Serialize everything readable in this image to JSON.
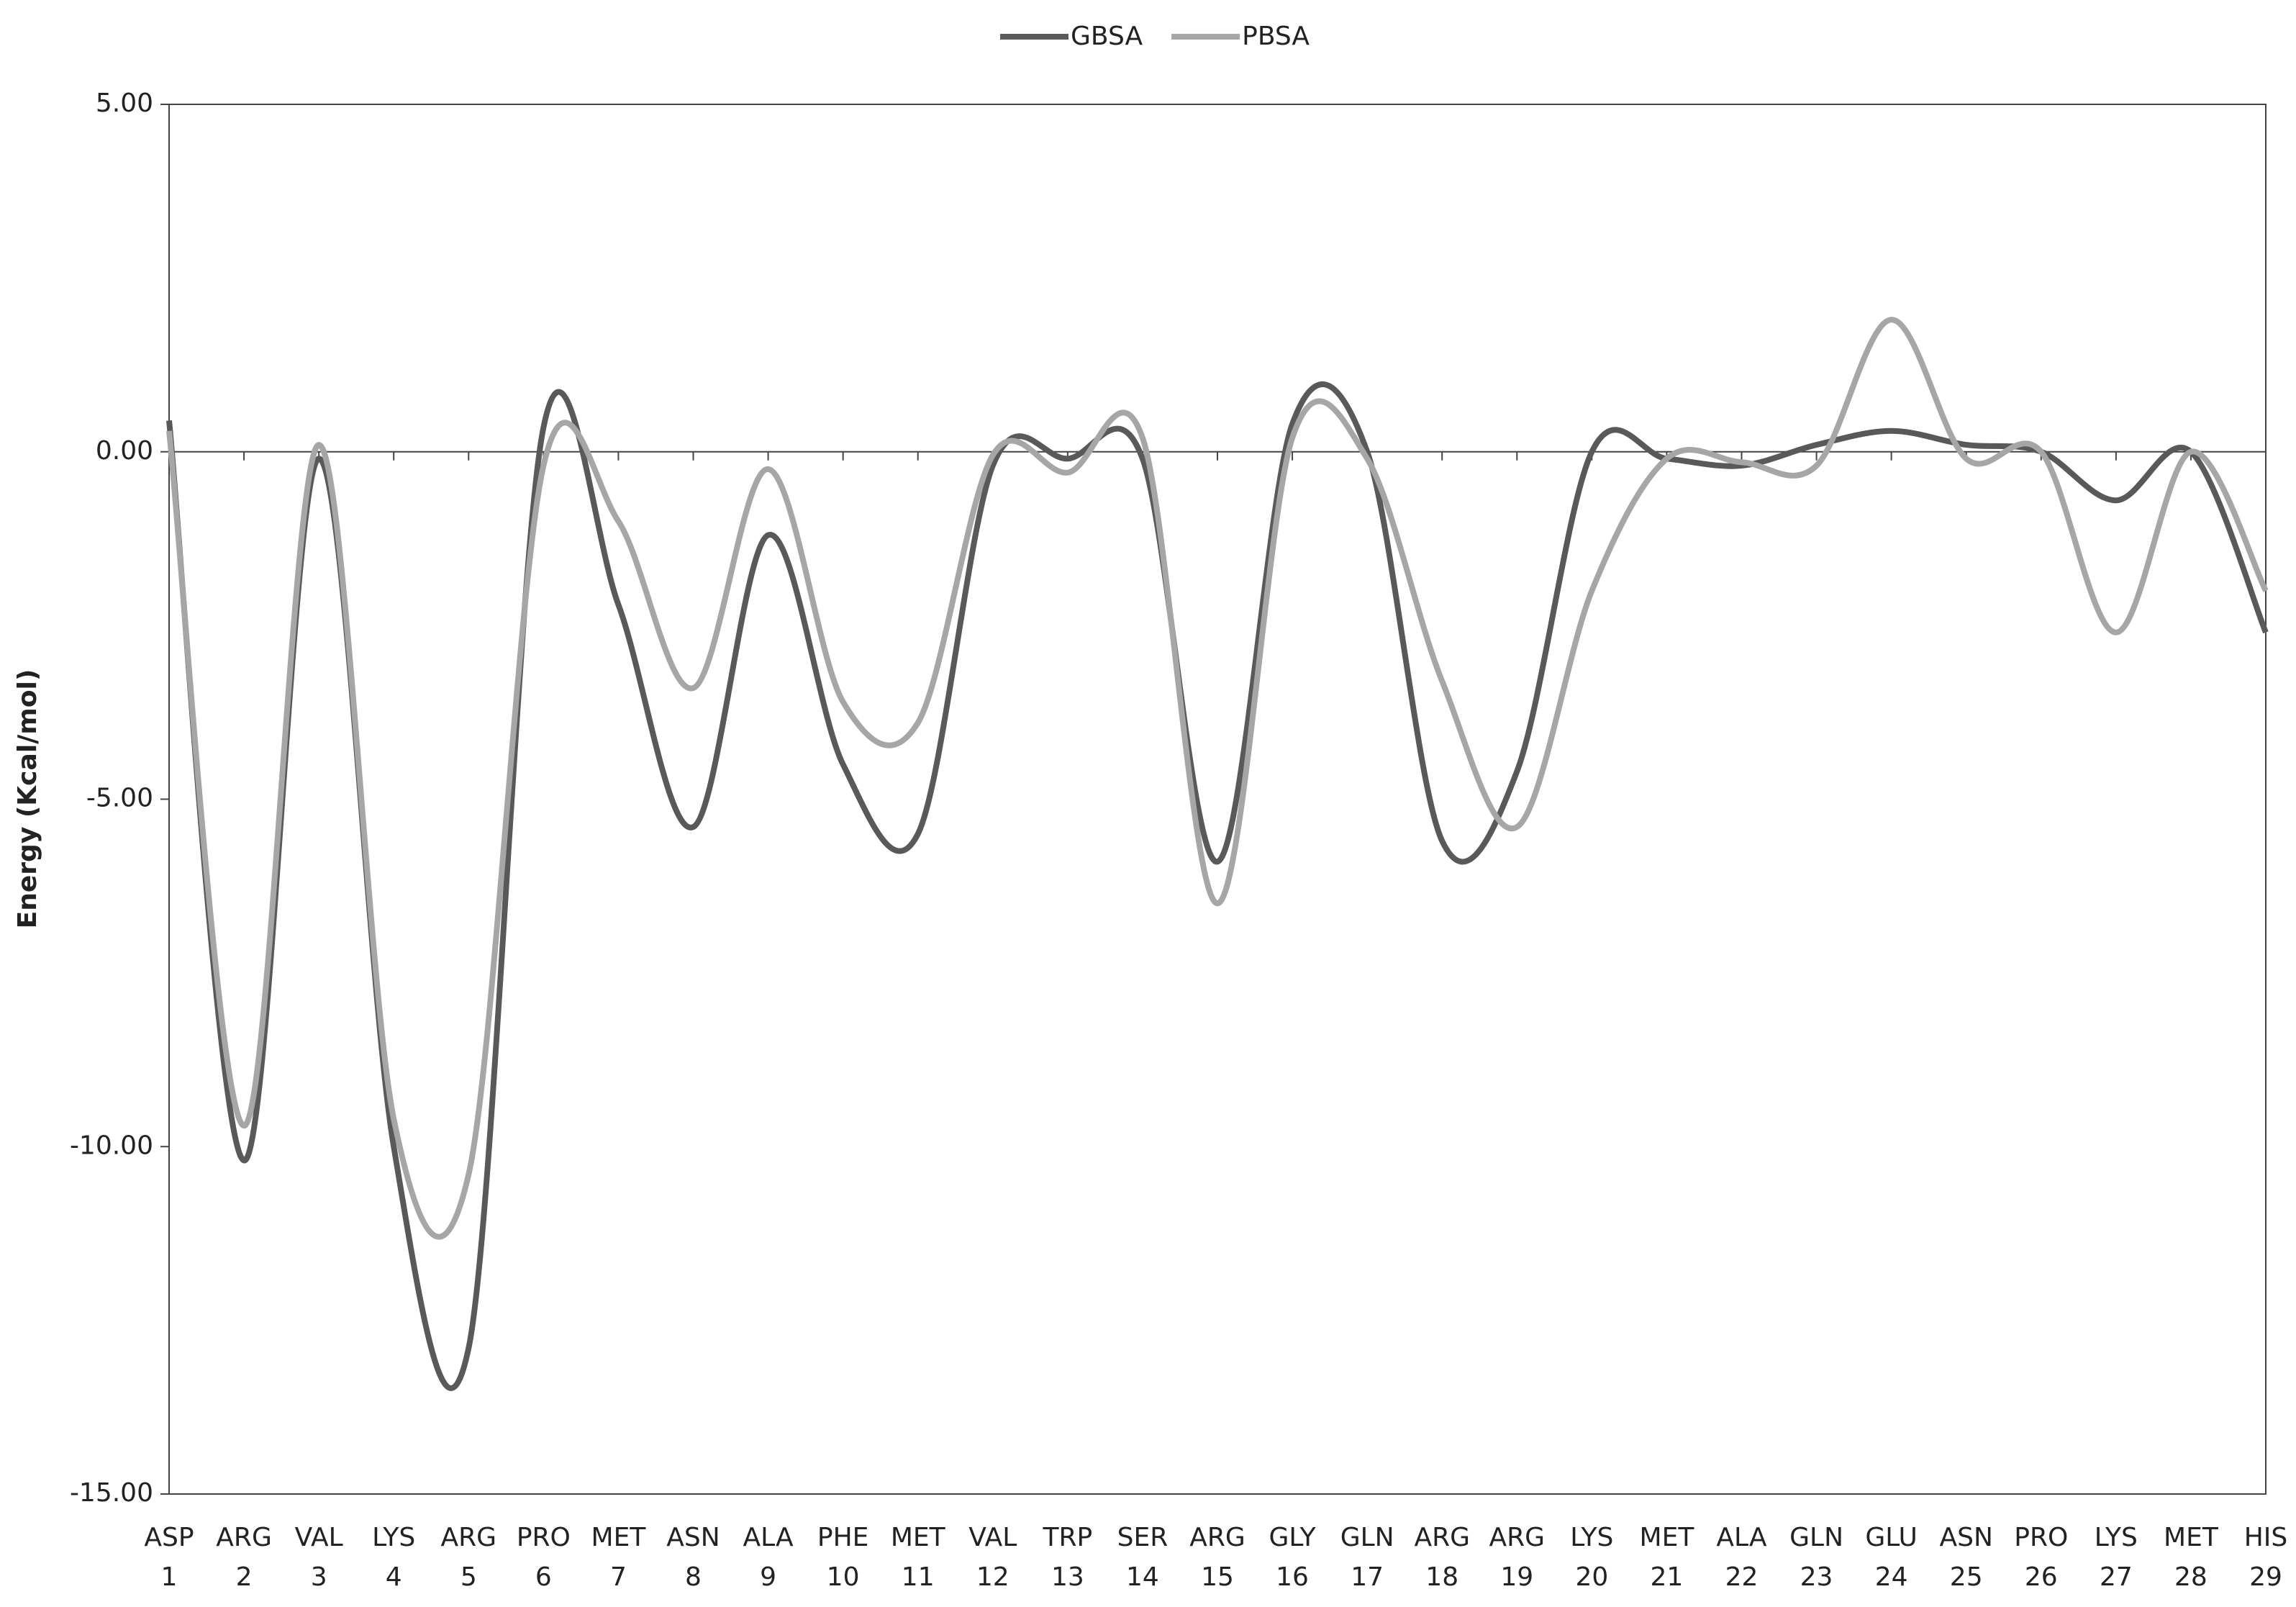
{
  "chart_data": {
    "type": "line",
    "ylabel": "Energy (Kcal/mol)",
    "categories": [
      [
        "ASP",
        "1"
      ],
      [
        "ARG",
        "2"
      ],
      [
        "VAL",
        "3"
      ],
      [
        "LYS",
        "4"
      ],
      [
        "ARG",
        "5"
      ],
      [
        "PRO",
        "6"
      ],
      [
        "MET",
        "7"
      ],
      [
        "ASN",
        "8"
      ],
      [
        "ALA",
        "9"
      ],
      [
        "PHE",
        "10"
      ],
      [
        "MET",
        "11"
      ],
      [
        "VAL",
        "12"
      ],
      [
        "TRP",
        "13"
      ],
      [
        "SER",
        "14"
      ],
      [
        "ARG",
        "15"
      ],
      [
        "GLY",
        "16"
      ],
      [
        "GLN",
        "17"
      ],
      [
        "ARG",
        "18"
      ],
      [
        "ARG",
        "19"
      ],
      [
        "LYS",
        "20"
      ],
      [
        "MET",
        "21"
      ],
      [
        "ALA",
        "22"
      ],
      [
        "GLN",
        "23"
      ],
      [
        "GLU",
        "24"
      ],
      [
        "ASN",
        "25"
      ],
      [
        "PRO",
        "26"
      ],
      [
        "LYS",
        "27"
      ],
      [
        "MET",
        "28"
      ],
      [
        "HIS",
        "29"
      ]
    ],
    "series": [
      {
        "name": "GBSA",
        "color": "#595959",
        "values": [
          0.45,
          -10.2,
          -0.1,
          -10.0,
          -12.9,
          0.35,
          -2.2,
          -5.4,
          -1.2,
          -4.5,
          -5.5,
          -0.2,
          -0.1,
          -0.1,
          -5.9,
          0.4,
          0.0,
          -5.6,
          -4.6,
          0.0,
          -0.1,
          -0.2,
          0.1,
          0.3,
          0.1,
          0.0,
          -0.7,
          0.0,
          -2.6
        ]
      },
      {
        "name": "PBSA",
        "color": "#a6a6a6",
        "values": [
          0.3,
          -9.7,
          0.1,
          -9.6,
          -10.4,
          -0.2,
          -1.0,
          -3.4,
          -0.25,
          -3.6,
          -3.9,
          -0.05,
          -0.3,
          0.2,
          -6.5,
          0.2,
          -0.1,
          -3.3,
          -5.4,
          -2.0,
          -0.1,
          -0.15,
          -0.2,
          1.9,
          -0.1,
          0.0,
          -2.6,
          0.0,
          -2.0
        ]
      }
    ],
    "ylim": [
      -15,
      5
    ],
    "yticks": [
      {
        "value": -15,
        "label": "-15.00"
      },
      {
        "value": -10,
        "label": "-10.00"
      },
      {
        "value": -5,
        "label": "-5.00"
      },
      {
        "value": 0,
        "label": "0.00"
      },
      {
        "value": 5,
        "label": "5.00"
      }
    ],
    "smooth": true,
    "legend": "top"
  }
}
